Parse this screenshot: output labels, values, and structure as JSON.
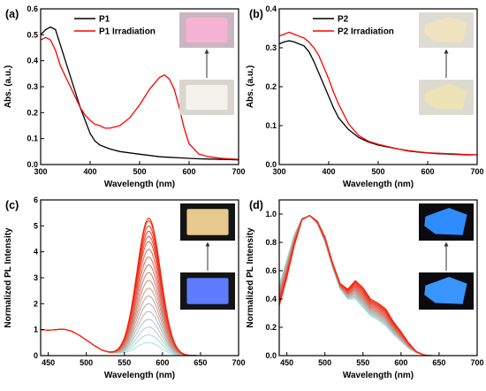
{
  "chart_data": [
    {
      "type": "line",
      "panel_label": "(a)",
      "xlabel": "Wavelength (nm)",
      "ylabel": "Abs. (a.u.)",
      "xlim": [
        300,
        700
      ],
      "ylim": [
        0,
        0.6
      ],
      "xticks": [
        300,
        400,
        500,
        600,
        700
      ],
      "yticks": [
        0.0,
        0.1,
        0.2,
        0.3,
        0.4,
        0.5,
        0.6
      ],
      "ytick_labels": [
        "0.0",
        "0.1",
        "0.2",
        "0.3",
        "0.4",
        "0.5",
        "0.6"
      ],
      "legend": "top-left",
      "inset": {
        "top": "pink film (after irradiation)",
        "bottom": "colorless film",
        "arrow": "up"
      },
      "series": [
        {
          "name": "P1",
          "color": "#000000",
          "x": [
            300,
            310,
            320,
            330,
            340,
            350,
            360,
            370,
            380,
            390,
            400,
            410,
            420,
            440,
            460,
            480,
            500,
            520,
            540,
            560,
            580,
            600,
            620,
            640,
            660,
            680,
            700
          ],
          "y": [
            0.5,
            0.52,
            0.53,
            0.52,
            0.46,
            0.4,
            0.34,
            0.28,
            0.22,
            0.17,
            0.12,
            0.09,
            0.075,
            0.06,
            0.05,
            0.045,
            0.04,
            0.035,
            0.03,
            0.028,
            0.026,
            0.024,
            0.022,
            0.021,
            0.02,
            0.019,
            0.018
          ]
        },
        {
          "name": "P1 Irradiation",
          "color": "#ff0000",
          "x": [
            300,
            310,
            320,
            330,
            340,
            350,
            360,
            370,
            380,
            390,
            400,
            410,
            420,
            430,
            440,
            450,
            460,
            480,
            500,
            520,
            540,
            550,
            560,
            570,
            580,
            590,
            600,
            620,
            640,
            660,
            680,
            700
          ],
          "y": [
            0.48,
            0.49,
            0.48,
            0.44,
            0.38,
            0.34,
            0.3,
            0.26,
            0.22,
            0.19,
            0.17,
            0.155,
            0.15,
            0.14,
            0.14,
            0.145,
            0.15,
            0.18,
            0.23,
            0.29,
            0.335,
            0.345,
            0.33,
            0.29,
            0.22,
            0.14,
            0.08,
            0.04,
            0.03,
            0.025,
            0.022,
            0.02
          ]
        }
      ]
    },
    {
      "type": "line",
      "panel_label": "(b)",
      "xlabel": "Wavelength (nm)",
      "ylabel": "Abs. (a.u.)",
      "xlim": [
        300,
        700
      ],
      "ylim": [
        0,
        0.4
      ],
      "xticks": [
        300,
        400,
        500,
        600,
        700
      ],
      "yticks": [
        0.0,
        0.1,
        0.2,
        0.3,
        0.4
      ],
      "ytick_labels": [
        "0.0",
        "0.1",
        "0.2",
        "0.3",
        "0.4"
      ],
      "legend": "top-left",
      "inset": {
        "top": "pale yellow film (after irradiation)",
        "bottom": "pale yellow film",
        "arrow": "up"
      },
      "series": [
        {
          "name": "P2",
          "color": "#000000",
          "x": [
            300,
            310,
            320,
            330,
            340,
            350,
            360,
            370,
            380,
            390,
            400,
            410,
            420,
            440,
            460,
            480,
            500,
            520,
            540,
            560,
            580,
            600,
            620,
            640,
            660,
            680,
            700
          ],
          "y": [
            0.31,
            0.315,
            0.318,
            0.315,
            0.31,
            0.305,
            0.29,
            0.265,
            0.235,
            0.205,
            0.175,
            0.145,
            0.12,
            0.09,
            0.07,
            0.058,
            0.05,
            0.045,
            0.04,
            0.035,
            0.032,
            0.03,
            0.028,
            0.027,
            0.026,
            0.025,
            0.025
          ]
        },
        {
          "name": "P2 Irradiation",
          "color": "#ff0000",
          "x": [
            300,
            310,
            320,
            330,
            340,
            350,
            360,
            370,
            380,
            390,
            400,
            410,
            420,
            440,
            460,
            480,
            500,
            520,
            540,
            560,
            580,
            600,
            620,
            640,
            660,
            680,
            700
          ],
          "y": [
            0.33,
            0.335,
            0.34,
            0.335,
            0.33,
            0.325,
            0.315,
            0.3,
            0.28,
            0.25,
            0.22,
            0.185,
            0.155,
            0.105,
            0.075,
            0.06,
            0.052,
            0.046,
            0.04,
            0.036,
            0.033,
            0.03,
            0.029,
            0.028,
            0.027,
            0.026,
            0.025
          ]
        }
      ]
    },
    {
      "type": "line",
      "panel_label": "(c)",
      "xlabel": "Wavelength (nm)",
      "ylabel": "Normalized PL Intensity",
      "xlim": [
        440,
        700
      ],
      "ylim": [
        0,
        6
      ],
      "xticks": [
        450,
        500,
        550,
        600,
        650,
        700
      ],
      "yticks": [
        0,
        1,
        2,
        3,
        4,
        5,
        6
      ],
      "ytick_labels": [
        "0",
        "1",
        "2",
        "3",
        "4",
        "5",
        "6"
      ],
      "legend": "none",
      "inset": {
        "top": "yellow emitting film (after irradiation)",
        "bottom": "blue emitting film",
        "arrow": "up"
      },
      "color_gradient": [
        "#9fe3e3",
        "#ff1a00"
      ],
      "base_profile": {
        "x": [
          440,
          450,
          460,
          470,
          480,
          490,
          500,
          510,
          520,
          530,
          540
        ],
        "y": [
          1.0,
          0.98,
          1.0,
          1.02,
          0.95,
          0.8,
          0.6,
          0.4,
          0.22,
          0.12,
          0.08
        ]
      },
      "peak_profile": {
        "center": 582,
        "width": 22
      },
      "series": [
        {
          "name": "",
          "peak": 0.5
        },
        {
          "name": "",
          "peak": 0.8
        },
        {
          "name": "",
          "peak": 1.1
        },
        {
          "name": "",
          "peak": 1.4
        },
        {
          "name": "",
          "peak": 1.7
        },
        {
          "name": "",
          "peak": 2.0
        },
        {
          "name": "",
          "peak": 2.3
        },
        {
          "name": "",
          "peak": 2.6
        },
        {
          "name": "",
          "peak": 2.9
        },
        {
          "name": "",
          "peak": 3.2
        },
        {
          "name": "",
          "peak": 3.5
        },
        {
          "name": "",
          "peak": 3.8
        },
        {
          "name": "",
          "peak": 4.1
        },
        {
          "name": "",
          "peak": 4.4
        },
        {
          "name": "",
          "peak": 4.6
        },
        {
          "name": "",
          "peak": 4.8
        },
        {
          "name": "",
          "peak": 5.0
        },
        {
          "name": "",
          "peak": 5.2
        },
        {
          "name": "",
          "peak": 5.3
        }
      ]
    },
    {
      "type": "line",
      "panel_label": "(d)",
      "xlabel": "Wavelength (nm)",
      "ylabel": "Normalized PL Intensity",
      "xlim": [
        440,
        700
      ],
      "ylim": [
        0,
        1.1
      ],
      "xticks": [
        450,
        500,
        550,
        600,
        650,
        700
      ],
      "yticks": [
        0.0,
        0.2,
        0.4,
        0.6,
        0.8,
        1.0
      ],
      "ytick_labels": [
        "0.0",
        "0.2",
        "0.4",
        "0.6",
        "0.8",
        "1.0"
      ],
      "legend": "none",
      "inset": {
        "top": "blue emitting film (after irradiation)",
        "bottom": "blue emitting film",
        "arrow": "up"
      },
      "color_gradient": [
        "#9fe3e3",
        "#ff1a00"
      ],
      "x": [
        440,
        450,
        460,
        470,
        480,
        490,
        500,
        510,
        520,
        530,
        540,
        550,
        560,
        570,
        580,
        590,
        600,
        610,
        620,
        630,
        640
      ],
      "series_first": [
        0.5,
        0.68,
        0.86,
        0.97,
        0.99,
        0.93,
        0.8,
        0.62,
        0.47,
        0.4,
        0.4,
        0.34,
        0.28,
        0.25,
        0.21,
        0.15,
        0.1,
        0.05,
        0.02,
        0.005,
        0.0
      ],
      "series_last": [
        0.35,
        0.55,
        0.78,
        0.96,
        0.99,
        0.95,
        0.84,
        0.66,
        0.51,
        0.47,
        0.53,
        0.48,
        0.4,
        0.37,
        0.33,
        0.24,
        0.17,
        0.09,
        0.03,
        0.005,
        0.0
      ],
      "series_count": 16
    }
  ]
}
